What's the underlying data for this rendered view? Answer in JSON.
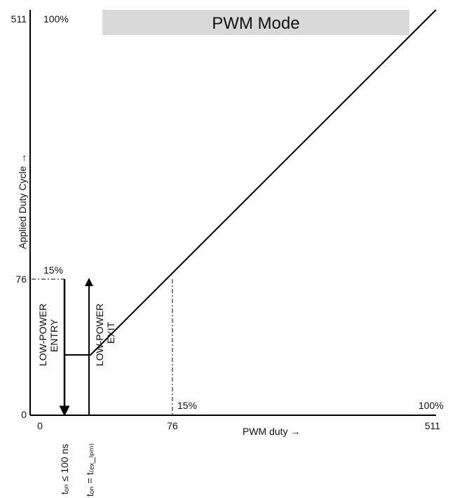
{
  "chart_data": {
    "type": "line",
    "title": "PWM Mode",
    "xlabel": "PWM duty →",
    "ylabel": "Applied Duty Cycle →",
    "xlim": [
      0,
      511
    ],
    "ylim": [
      0,
      511
    ],
    "x_ticks": [
      "0",
      "76",
      "511"
    ],
    "y_ticks": [
      "0",
      "76",
      "511"
    ],
    "corner_labels": {
      "y_top": "100%",
      "y_threshold": "15%",
      "x_threshold": "15%",
      "x_right": "100%"
    },
    "series": [
      {
        "x": [
          0,
          76,
          511
        ],
        "y": [
          76,
          76,
          511
        ]
      }
    ],
    "annotations": {
      "entry": {
        "label_line1": "LOW-POWER",
        "label_line2": "ENTRY",
        "time_label": "tₒₙ ≤ 100 ns"
      },
      "exit": {
        "label_line1": "LOW-POWER",
        "label_line2": "EXIT",
        "time_label": "tₒₙ = t₍ₑₓ_ₗₚₘ₎"
      }
    }
  }
}
